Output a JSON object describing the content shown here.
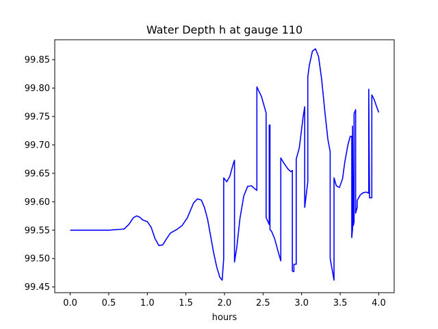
{
  "chart_data": {
    "type": "line",
    "title": "Water Depth h at gauge 110",
    "xlabel": "hours",
    "ylabel": "",
    "xlim": [
      -0.2,
      4.2
    ],
    "ylim": [
      99.44,
      99.885
    ],
    "xticks": [
      0.0,
      0.5,
      1.0,
      1.5,
      2.0,
      2.5,
      3.0,
      3.5,
      4.0
    ],
    "xtick_labels": [
      "0.0",
      "0.5",
      "1.0",
      "1.5",
      "2.0",
      "2.5",
      "3.0",
      "3.5",
      "4.0"
    ],
    "yticks": [
      99.45,
      99.5,
      99.55,
      99.6,
      99.65,
      99.7,
      99.75,
      99.8,
      99.85
    ],
    "ytick_labels": [
      "99.45",
      "99.50",
      "99.55",
      "99.60",
      "99.65",
      "99.70",
      "99.75",
      "99.80",
      "99.85"
    ],
    "grid": false,
    "series": [
      {
        "color": "#0000ff",
        "x": [
          0.0,
          0.3,
          0.5,
          0.7,
          0.76,
          0.82,
          0.86,
          0.9,
          0.94,
          1.0,
          1.05,
          1.1,
          1.15,
          1.2,
          1.25,
          1.3,
          1.38,
          1.45,
          1.52,
          1.6,
          1.65,
          1.7,
          1.74,
          1.78,
          1.82,
          1.86,
          1.9,
          1.94,
          1.97,
          1.99,
          1.99,
          2.03,
          2.07,
          2.11,
          2.13,
          2.13,
          2.16,
          2.2,
          2.25,
          2.3,
          2.35,
          2.4,
          2.42,
          2.42,
          2.48,
          2.54,
          2.54,
          2.58,
          2.58,
          2.59,
          2.59,
          2.61,
          2.65,
          2.7,
          2.73,
          2.73,
          2.77,
          2.82,
          2.86,
          2.88,
          2.88,
          2.9,
          2.9,
          2.93,
          2.93,
          2.97,
          3.02,
          3.04,
          3.04,
          3.08,
          3.08,
          3.1,
          3.14,
          3.18,
          3.22,
          3.26,
          3.3,
          3.34,
          3.37,
          3.37,
          3.42,
          3.42,
          3.45,
          3.49,
          3.53,
          3.56,
          3.6,
          3.63,
          3.65,
          3.65,
          3.66,
          3.66,
          3.67,
          3.68,
          3.68,
          3.7,
          3.7,
          3.72,
          3.72,
          3.76,
          3.8,
          3.84,
          3.87,
          3.87,
          3.88,
          3.88,
          3.91,
          3.91,
          3.94,
          3.97,
          4.0
        ],
        "y": [
          99.55,
          99.55,
          99.55,
          99.552,
          99.56,
          99.572,
          99.575,
          99.573,
          99.568,
          99.565,
          99.555,
          99.535,
          99.523,
          99.524,
          99.535,
          99.545,
          99.551,
          99.558,
          99.572,
          99.598,
          99.605,
          99.603,
          99.59,
          99.57,
          99.54,
          99.51,
          99.485,
          99.467,
          99.462,
          99.5,
          99.642,
          99.635,
          99.645,
          99.665,
          99.673,
          99.494,
          99.52,
          99.57,
          99.61,
          99.627,
          99.628,
          99.622,
          99.62,
          99.802,
          99.785,
          99.756,
          99.572,
          99.56,
          99.735,
          99.735,
          99.551,
          99.548,
          99.535,
          99.51,
          99.496,
          99.677,
          99.668,
          99.658,
          99.653,
          99.655,
          99.478,
          99.477,
          99.49,
          99.49,
          99.675,
          99.695,
          99.75,
          99.767,
          99.59,
          99.635,
          99.82,
          99.84,
          99.865,
          99.869,
          99.855,
          99.815,
          99.76,
          99.71,
          99.688,
          99.5,
          99.462,
          99.642,
          99.628,
          99.625,
          99.64,
          99.67,
          99.7,
          99.715,
          99.715,
          99.537,
          99.552,
          99.733,
          99.558,
          99.565,
          99.755,
          99.762,
          99.58,
          99.59,
          99.602,
          99.612,
          99.616,
          99.617,
          99.615,
          99.798,
          99.61,
          99.607,
          99.607,
          99.788,
          99.78,
          99.768,
          99.757
        ]
      }
    ]
  }
}
